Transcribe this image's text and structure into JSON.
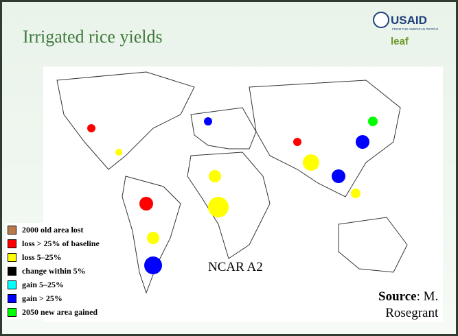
{
  "title": "Irrigated rice yields",
  "logo": {
    "name": "USAID",
    "tagline": "FROM THE AMERICAN PEOPLE",
    "partner": "leaf"
  },
  "legend": {
    "items": [
      {
        "label": "2000 old area lost",
        "color": "#b87a4b"
      },
      {
        "label": "loss > 25% of baseline",
        "color": "#ff0000"
      },
      {
        "label": "loss 5–25%",
        "color": "#ffff00"
      },
      {
        "label": "change within 5%",
        "color": "#000000"
      },
      {
        "label": "gain 5–25%",
        "color": "#00ffff"
      },
      {
        "label": "gain > 25%",
        "color": "#0000ff"
      },
      {
        "label": "2050 new area gained",
        "color": "#00ff00"
      }
    ]
  },
  "map_label": "NCAR A2",
  "source": {
    "label": "Source",
    "text": ": M.",
    "name": "Rosegrant"
  }
}
